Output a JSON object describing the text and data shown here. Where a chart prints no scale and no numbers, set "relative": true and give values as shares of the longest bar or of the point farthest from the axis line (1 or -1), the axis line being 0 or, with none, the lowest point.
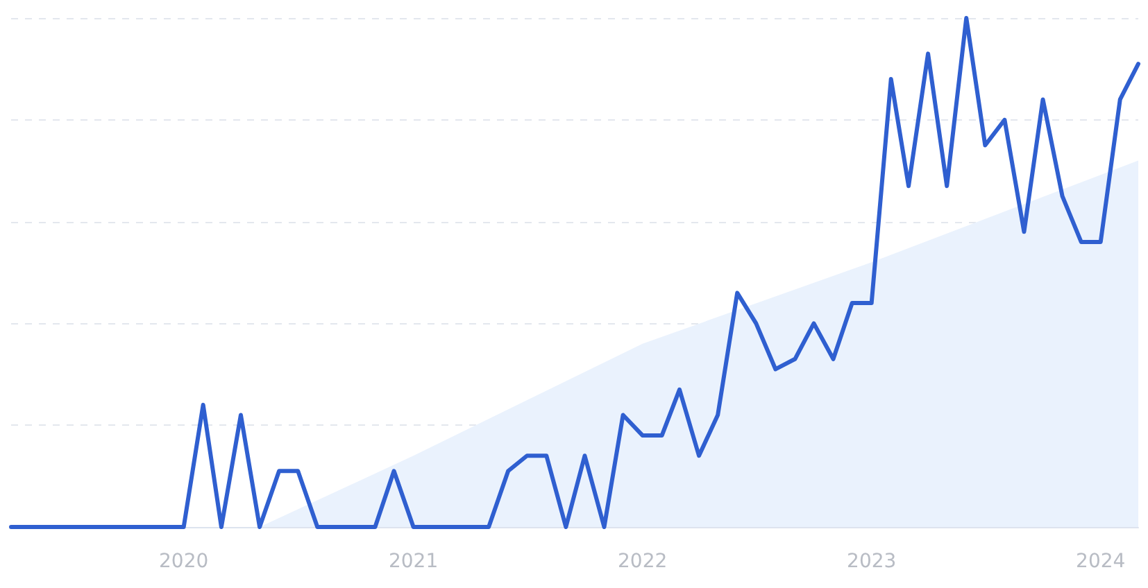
{
  "chart_data": {
    "type": "line",
    "relative": true,
    "x": [
      "2019-04",
      "2019-05",
      "2019-06",
      "2019-07",
      "2019-08",
      "2019-09",
      "2019-10",
      "2019-11",
      "2019-12",
      "2020-01",
      "2020-02",
      "2020-03",
      "2020-04",
      "2020-05",
      "2020-06",
      "2020-07",
      "2020-08",
      "2020-09",
      "2020-10",
      "2020-11",
      "2020-12",
      "2021-01",
      "2021-02",
      "2021-03",
      "2021-04",
      "2021-05",
      "2021-06",
      "2021-07",
      "2021-08",
      "2021-09",
      "2021-10",
      "2021-11",
      "2021-12",
      "2022-01",
      "2022-02",
      "2022-03",
      "2022-04",
      "2022-05",
      "2022-06",
      "2022-07",
      "2022-08",
      "2022-09",
      "2022-10",
      "2022-11",
      "2022-12",
      "2023-01",
      "2023-02",
      "2023-03",
      "2023-04",
      "2023-05",
      "2023-06",
      "2023-07",
      "2023-08",
      "2023-09",
      "2023-10",
      "2023-11",
      "2023-12",
      "2024-01",
      "2024-02",
      "2024-03"
    ],
    "series": [
      {
        "type": "area",
        "color": "#eaf2fd",
        "x": [
          "2020-05",
          "2021-01",
          "2022-01",
          "2023-01",
          "2024-03"
        ],
        "values": [
          0,
          0.14,
          0.36,
          0.52,
          0.72
        ]
      },
      {
        "color": "#2f5fd0",
        "values": [
          0,
          0,
          0,
          0,
          0,
          0,
          0,
          0,
          0,
          0,
          0.24,
          0,
          0.22,
          0,
          0.11,
          0.11,
          0,
          0,
          0,
          0,
          0.11,
          0,
          0,
          0,
          0,
          0,
          0.11,
          0.14,
          0.14,
          0,
          0.14,
          0,
          0.22,
          0.18,
          0.18,
          0.27,
          0.14,
          0.22,
          0.46,
          0.4,
          0.31,
          0.33,
          0.4,
          0.33,
          0.44,
          0.44,
          0.88,
          0.67,
          0.93,
          0.67,
          1,
          0.75,
          0.8,
          0.58,
          0.84,
          0.65,
          0.56,
          0.56,
          0.84,
          0.91
        ]
      }
    ],
    "xlim": [
      "2019-04",
      "2024-03"
    ],
    "xticks": [
      "2020",
      "2021",
      "2022",
      "2023",
      "2024"
    ],
    "grid": "y",
    "marker": "none",
    "line_style": "solid"
  }
}
